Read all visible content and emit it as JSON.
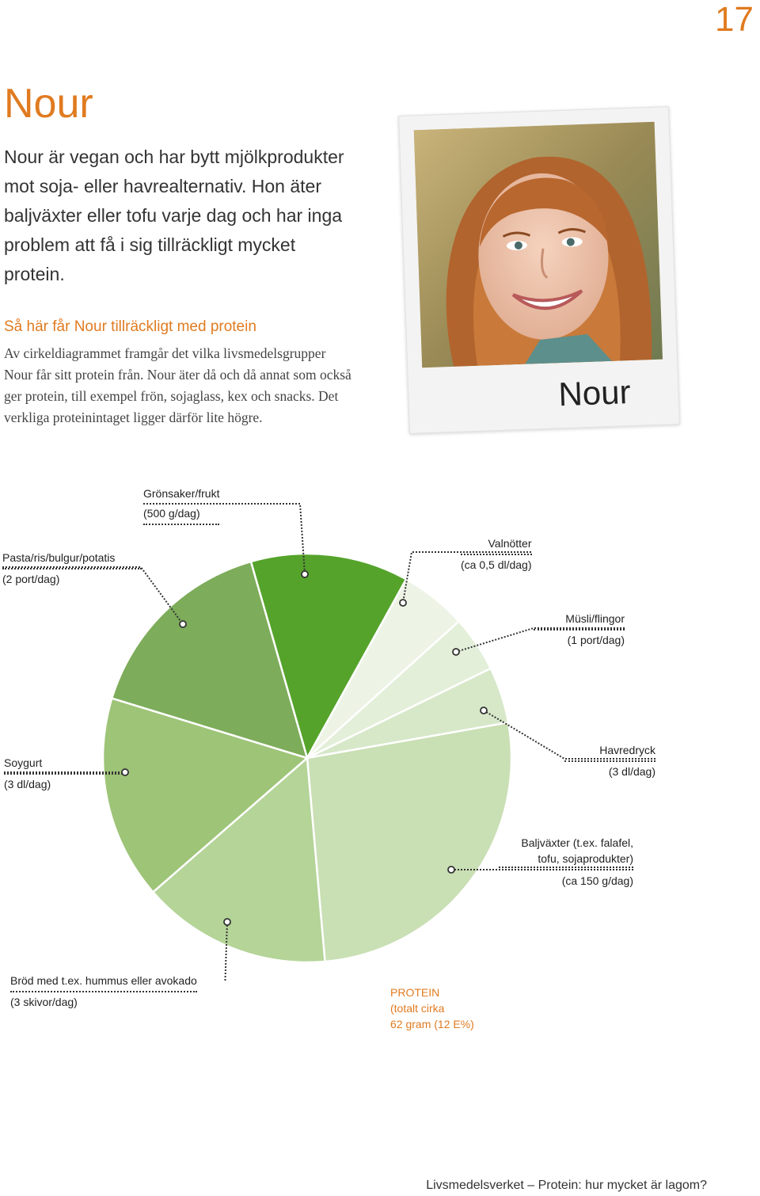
{
  "page_number": "17",
  "title": "Nour",
  "intro": "Nour är vegan och har bytt mjölk­produkter mot soja- eller havrealternativ. Hon äter baljväxter eller tofu varje dag och har inga problem att få i sig tillräckligt mycket protein.",
  "section": {
    "heading": "Så här får Nour tillräckligt med protein",
    "body": "Av cirkeldiagrammet framgår det vilka livsmedels­grupper Nour får sitt protein från. Nour äter då och då annat som också ger protein, till exempel frön, sojaglass, kex och snacks. Det verkliga proteinintaget ligger därför lite högre."
  },
  "photo": {
    "caption": "Nour"
  },
  "chart_data": {
    "type": "pie",
    "slices": [
      {
        "label": "Grönsaker/frukt",
        "amount": "(500 g/dag)",
        "color": "#55a32b"
      },
      {
        "label": "Valnötter",
        "amount": "(ca 0,5 dl/dag)",
        "color": "#edf4e6"
      },
      {
        "label": "Müsli/flingor",
        "amount": "(1 port/dag)",
        "color": "#e3efd9"
      },
      {
        "label": "Havredryck",
        "amount": "(3 dl/dag)",
        "color": "#d7e8c9"
      },
      {
        "label": "Baljväxter (t.ex. falafel, tofu, sojaprodukter)",
        "amount": "(ca 150 g/dag)",
        "color": "#c9dfb4"
      },
      {
        "label": "Bröd med t.ex. hummus eller avokado",
        "amount": "(3 skivor/dag)",
        "color": "#b4d498"
      },
      {
        "label": "Soygurt",
        "amount": "(3 dl/dag)",
        "color": "#9ec478"
      },
      {
        "label": "Pasta/ris/bulgur/potatis",
        "amount": "(2 port/dag)",
        "color": "#7dac5a"
      }
    ],
    "total": {
      "label": "PROTEIN",
      "line2": "(totalt cirka",
      "line3": "62 gram (12 E%)"
    }
  },
  "footer": "Livsmedelsverket – Protein: hur mycket är lagom?"
}
